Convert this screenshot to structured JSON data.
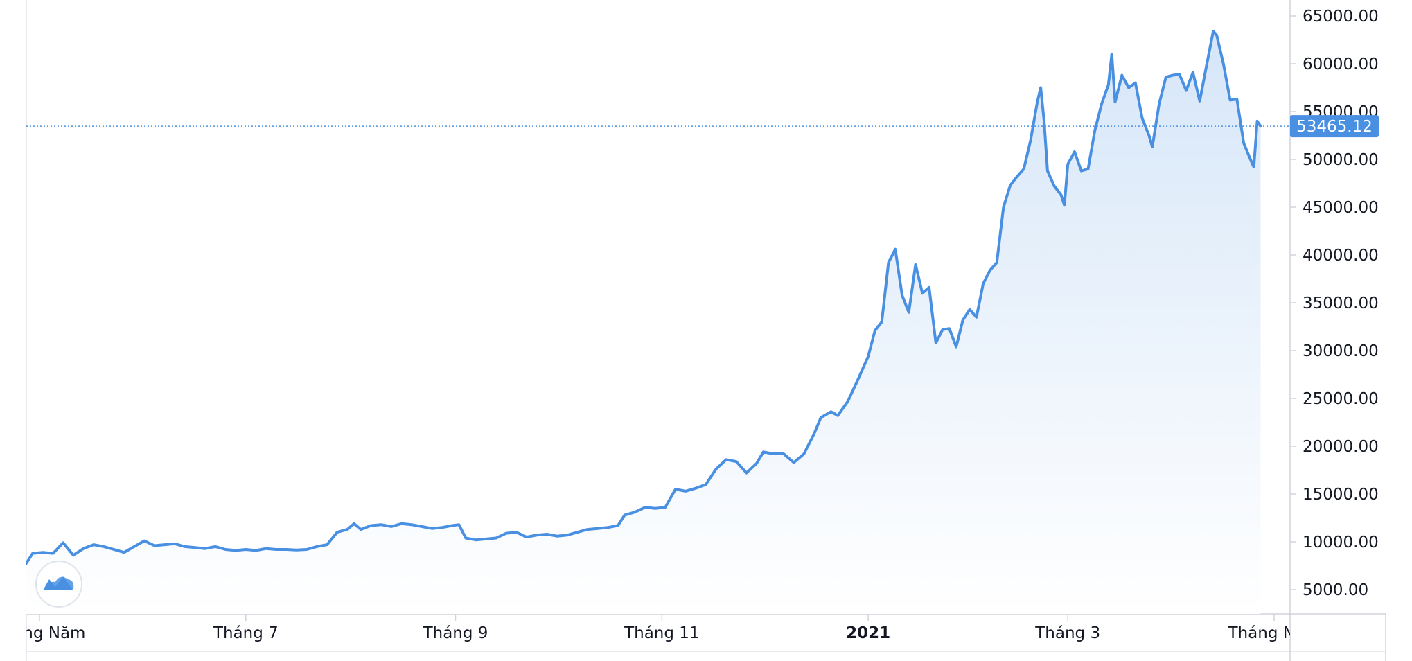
{
  "chart_data": {
    "type": "area",
    "title": "",
    "xlabel": "",
    "ylabel": "",
    "ylim": [
      0,
      66700
    ],
    "y_ticks": [
      "65000.00",
      "60000.00",
      "55000.00",
      "50000.00",
      "45000.00",
      "40000.00",
      "35000.00",
      "30000.00",
      "25000.00",
      "20000.00",
      "15000.00",
      "10000.00",
      "5000.00"
    ],
    "x_ticks": [
      {
        "label": "Tháng Năm",
        "date": "2020-05-01",
        "bold": false
      },
      {
        "label": "Tháng 7",
        "date": "2020-07-01",
        "bold": false
      },
      {
        "label": "Tháng 9",
        "date": "2020-09-01",
        "bold": false
      },
      {
        "label": "Tháng 11",
        "date": "2020-11-01",
        "bold": false
      },
      {
        "label": "2021",
        "date": "2021-01-01",
        "bold": true
      },
      {
        "label": "Tháng 3",
        "date": "2021-03-01",
        "bold": false
      },
      {
        "label": "Tháng Năm",
        "date": "2021-05-01",
        "bold": false
      }
    ],
    "last_price": "53465.12",
    "last_price_value": 53465.12,
    "line_color": "#4a90e2",
    "fill_color": "#dce9f8",
    "grid": false,
    "series": [
      {
        "points": [
          [
            "2020-04-27",
            7700
          ],
          [
            "2020-04-29",
            8800
          ],
          [
            "2020-05-02",
            8900
          ],
          [
            "2020-05-05",
            8800
          ],
          [
            "2020-05-08",
            9900
          ],
          [
            "2020-05-11",
            8600
          ],
          [
            "2020-05-14",
            9300
          ],
          [
            "2020-05-17",
            9700
          ],
          [
            "2020-05-20",
            9500
          ],
          [
            "2020-05-23",
            9200
          ],
          [
            "2020-05-26",
            8900
          ],
          [
            "2020-05-29",
            9500
          ],
          [
            "2020-06-01",
            10100
          ],
          [
            "2020-06-04",
            9600
          ],
          [
            "2020-06-07",
            9700
          ],
          [
            "2020-06-10",
            9800
          ],
          [
            "2020-06-13",
            9500
          ],
          [
            "2020-06-16",
            9400
          ],
          [
            "2020-06-19",
            9300
          ],
          [
            "2020-06-22",
            9500
          ],
          [
            "2020-06-25",
            9200
          ],
          [
            "2020-06-28",
            9100
          ],
          [
            "2020-07-01",
            9200
          ],
          [
            "2020-07-04",
            9100
          ],
          [
            "2020-07-07",
            9300
          ],
          [
            "2020-07-10",
            9200
          ],
          [
            "2020-07-13",
            9200
          ],
          [
            "2020-07-16",
            9150
          ],
          [
            "2020-07-19",
            9200
          ],
          [
            "2020-07-22",
            9500
          ],
          [
            "2020-07-25",
            9700
          ],
          [
            "2020-07-28",
            11000
          ],
          [
            "2020-07-31",
            11300
          ],
          [
            "2020-08-02",
            11900
          ],
          [
            "2020-08-04",
            11300
          ],
          [
            "2020-08-07",
            11700
          ],
          [
            "2020-08-10",
            11800
          ],
          [
            "2020-08-13",
            11600
          ],
          [
            "2020-08-16",
            11900
          ],
          [
            "2020-08-19",
            11800
          ],
          [
            "2020-08-22",
            11600
          ],
          [
            "2020-08-25",
            11400
          ],
          [
            "2020-08-28",
            11500
          ],
          [
            "2020-08-31",
            11700
          ],
          [
            "2020-09-02",
            11800
          ],
          [
            "2020-09-04",
            10400
          ],
          [
            "2020-09-07",
            10200
          ],
          [
            "2020-09-10",
            10300
          ],
          [
            "2020-09-13",
            10400
          ],
          [
            "2020-09-16",
            10900
          ],
          [
            "2020-09-19",
            11000
          ],
          [
            "2020-09-22",
            10500
          ],
          [
            "2020-09-25",
            10700
          ],
          [
            "2020-09-28",
            10800
          ],
          [
            "2020-10-01",
            10600
          ],
          [
            "2020-10-04",
            10700
          ],
          [
            "2020-10-07",
            11000
          ],
          [
            "2020-10-10",
            11300
          ],
          [
            "2020-10-13",
            11400
          ],
          [
            "2020-10-16",
            11500
          ],
          [
            "2020-10-19",
            11700
          ],
          [
            "2020-10-21",
            12800
          ],
          [
            "2020-10-24",
            13100
          ],
          [
            "2020-10-27",
            13600
          ],
          [
            "2020-10-30",
            13500
          ],
          [
            "2020-11-02",
            13600
          ],
          [
            "2020-11-05",
            15500
          ],
          [
            "2020-11-08",
            15300
          ],
          [
            "2020-11-11",
            15600
          ],
          [
            "2020-11-14",
            16000
          ],
          [
            "2020-11-17",
            17600
          ],
          [
            "2020-11-20",
            18600
          ],
          [
            "2020-11-23",
            18400
          ],
          [
            "2020-11-26",
            17200
          ],
          [
            "2020-11-29",
            18200
          ],
          [
            "2020-12-01",
            19400
          ],
          [
            "2020-12-04",
            19200
          ],
          [
            "2020-12-07",
            19200
          ],
          [
            "2020-12-10",
            18300
          ],
          [
            "2020-12-13",
            19200
          ],
          [
            "2020-12-16",
            21300
          ],
          [
            "2020-12-18",
            23000
          ],
          [
            "2020-12-21",
            23600
          ],
          [
            "2020-12-23",
            23200
          ],
          [
            "2020-12-26",
            24700
          ],
          [
            "2020-12-29",
            27000
          ],
          [
            "2021-01-01",
            29400
          ],
          [
            "2021-01-03",
            32100
          ],
          [
            "2021-01-05",
            33000
          ],
          [
            "2021-01-07",
            39200
          ],
          [
            "2021-01-09",
            40600
          ],
          [
            "2021-01-11",
            35800
          ],
          [
            "2021-01-13",
            34000
          ],
          [
            "2021-01-15",
            39000
          ],
          [
            "2021-01-17",
            36000
          ],
          [
            "2021-01-19",
            36600
          ],
          [
            "2021-01-21",
            30800
          ],
          [
            "2021-01-23",
            32200
          ],
          [
            "2021-01-25",
            32300
          ],
          [
            "2021-01-27",
            30400
          ],
          [
            "2021-01-29",
            33200
          ],
          [
            "2021-01-31",
            34300
          ],
          [
            "2021-02-02",
            33500
          ],
          [
            "2021-02-04",
            37000
          ],
          [
            "2021-02-06",
            38400
          ],
          [
            "2021-02-08",
            39200
          ],
          [
            "2021-02-10",
            45000
          ],
          [
            "2021-02-12",
            47300
          ],
          [
            "2021-02-14",
            48200
          ],
          [
            "2021-02-16",
            49000
          ],
          [
            "2021-02-18",
            52000
          ],
          [
            "2021-02-20",
            56000
          ],
          [
            "2021-02-21",
            57500
          ],
          [
            "2021-02-22",
            54000
          ],
          [
            "2021-02-23",
            48800
          ],
          [
            "2021-02-25",
            47200
          ],
          [
            "2021-02-27",
            46300
          ],
          [
            "2021-02-28",
            45200
          ],
          [
            "2021-03-01",
            49500
          ],
          [
            "2021-03-03",
            50800
          ],
          [
            "2021-03-05",
            48800
          ],
          [
            "2021-03-07",
            49000
          ],
          [
            "2021-03-09",
            53000
          ],
          [
            "2021-03-11",
            55800
          ],
          [
            "2021-03-13",
            57800
          ],
          [
            "2021-03-14",
            61000
          ],
          [
            "2021-03-15",
            56000
          ],
          [
            "2021-03-17",
            58800
          ],
          [
            "2021-03-19",
            57500
          ],
          [
            "2021-03-21",
            58000
          ],
          [
            "2021-03-23",
            54300
          ],
          [
            "2021-03-25",
            52500
          ],
          [
            "2021-03-26",
            51300
          ],
          [
            "2021-03-28",
            55800
          ],
          [
            "2021-03-30",
            58600
          ],
          [
            "2021-04-01",
            58800
          ],
          [
            "2021-04-03",
            58900
          ],
          [
            "2021-04-05",
            57200
          ],
          [
            "2021-04-07",
            59100
          ],
          [
            "2021-04-09",
            56100
          ],
          [
            "2021-04-11",
            59800
          ],
          [
            "2021-04-13",
            63400
          ],
          [
            "2021-04-14",
            63000
          ],
          [
            "2021-04-16",
            60000
          ],
          [
            "2021-04-18",
            56200
          ],
          [
            "2021-04-20",
            56300
          ],
          [
            "2021-04-22",
            51700
          ],
          [
            "2021-04-24",
            50000
          ],
          [
            "2021-04-25",
            49200
          ],
          [
            "2021-04-26",
            54000
          ],
          [
            "2021-04-27",
            53465
          ]
        ]
      }
    ]
  }
}
